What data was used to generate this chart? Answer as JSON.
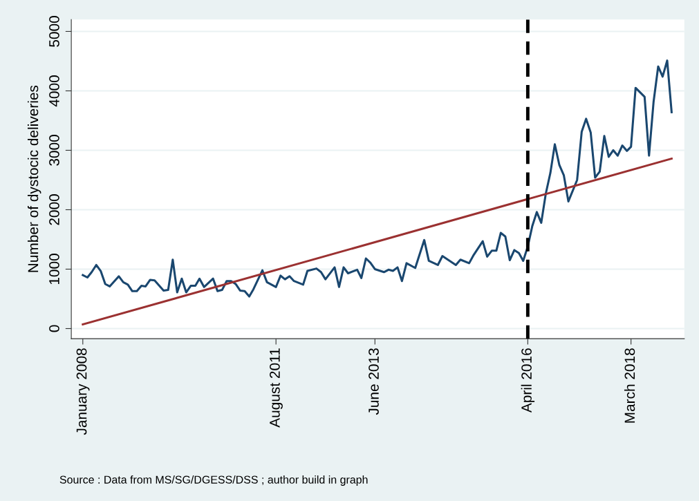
{
  "chart_data": {
    "type": "line",
    "ylabel": "Number of dystocic deliveries",
    "x": [
      "2008-01",
      "2008-02",
      "2008-03",
      "2008-04",
      "2008-05",
      "2008-06",
      "2008-07",
      "2008-09",
      "2008-10",
      "2008-11",
      "2008-12",
      "2009-01",
      "2009-02",
      "2009-03",
      "2009-04",
      "2009-05",
      "2009-07",
      "2009-08",
      "2009-09",
      "2009-10",
      "2009-11",
      "2009-12",
      "2010-01",
      "2010-02",
      "2010-03",
      "2010-04",
      "2010-06",
      "2010-07",
      "2010-08",
      "2010-09",
      "2010-10",
      "2010-11",
      "2010-12",
      "2011-01",
      "2011-02",
      "2011-03",
      "2011-05",
      "2011-06",
      "2011-08",
      "2011-09",
      "2011-10",
      "2011-11",
      "2011-12",
      "2012-02",
      "2012-03",
      "2012-05",
      "2012-06",
      "2012-07",
      "2012-09",
      "2012-10",
      "2012-11",
      "2012-12",
      "2013-02",
      "2013-03",
      "2013-04",
      "2013-05",
      "2013-06",
      "2013-08",
      "2013-09",
      "2013-10",
      "2013-11",
      "2013-12",
      "2014-01",
      "2014-03",
      "2014-05",
      "2014-06",
      "2014-08",
      "2014-09",
      "2014-12",
      "2015-01",
      "2015-03",
      "2015-04",
      "2015-06",
      "2015-07",
      "2015-08",
      "2015-09",
      "2015-10",
      "2015-11",
      "2015-12",
      "2016-01",
      "2016-02",
      "2016-03",
      "2016-04",
      "2016-05",
      "2016-06",
      "2016-07",
      "2016-08",
      "2016-09",
      "2016-10",
      "2016-11",
      "2016-12",
      "2017-01",
      "2017-03",
      "2017-04",
      "2017-05",
      "2017-06",
      "2017-07",
      "2017-08",
      "2017-09",
      "2017-10",
      "2017-11",
      "2017-12",
      "2018-01",
      "2018-02",
      "2018-03",
      "2018-04",
      "2018-06",
      "2018-07",
      "2018-08",
      "2018-09",
      "2018-10",
      "2018-11",
      "2018-12"
    ],
    "series": [
      {
        "color": "#1a476f",
        "values": [
          900,
          860,
          950,
          1070,
          970,
          750,
          710,
          880,
          780,
          740,
          630,
          630,
          720,
          710,
          820,
          810,
          640,
          650,
          1160,
          610,
          840,
          610,
          720,
          720,
          840,
          700,
          840,
          630,
          650,
          800,
          800,
          750,
          640,
          630,
          540,
          660,
          980,
          780,
          700,
          890,
          830,
          880,
          800,
          740,
          970,
          1010,
          950,
          830,
          1030,
          700,
          1030,
          930,
          990,
          850,
          1180,
          1110,
          1000,
          950,
          990,
          970,
          1030,
          800,
          1100,
          1020,
          1490,
          1140,
          1070,
          1220,
          1070,
          1160,
          1100,
          1240,
          1470,
          1210,
          1310,
          1310,
          1610,
          1550,
          1150,
          1320,
          1270,
          1140,
          1380,
          1720,
          1960,
          1780,
          2270,
          2620,
          3100,
          2750,
          2580,
          2140,
          2500,
          3310,
          3530,
          3300,
          2540,
          2640,
          3240,
          2890,
          3000,
          2910,
          3080,
          2990,
          3060,
          4050,
          3900,
          2910,
          3820,
          4410,
          4240,
          4510,
          3640
        ]
      },
      {
        "type": "line",
        "color": "#9b3131",
        "x": [
          "2008-01",
          "2018-12"
        ],
        "values": [
          70,
          2860
        ]
      }
    ],
    "xlim": [
      "2007-10-15",
      "2019-02-25"
    ],
    "xticks": [
      {
        "value": "2008-01",
        "label": "January 2008"
      },
      {
        "value": "2011-08",
        "label": "August 2011"
      },
      {
        "value": "2013-06",
        "label": "June 2013"
      },
      {
        "value": "2016-04",
        "label": "April 2016"
      },
      {
        "value": "2018-03",
        "label": "March 2018"
      }
    ],
    "ylim": [
      -170,
      5200
    ],
    "yticks": [
      0,
      1000,
      2000,
      3000,
      4000,
      5000
    ],
    "grid": "y",
    "marker": "none",
    "ref_lines": [
      {
        "axis": "x",
        "value": "2016-04",
        "color": "#000000",
        "line_style": "dashed"
      }
    ],
    "annotations": [
      "Source : Data from MS/SG/DGESS/DSS ; author build in graph"
    ]
  }
}
